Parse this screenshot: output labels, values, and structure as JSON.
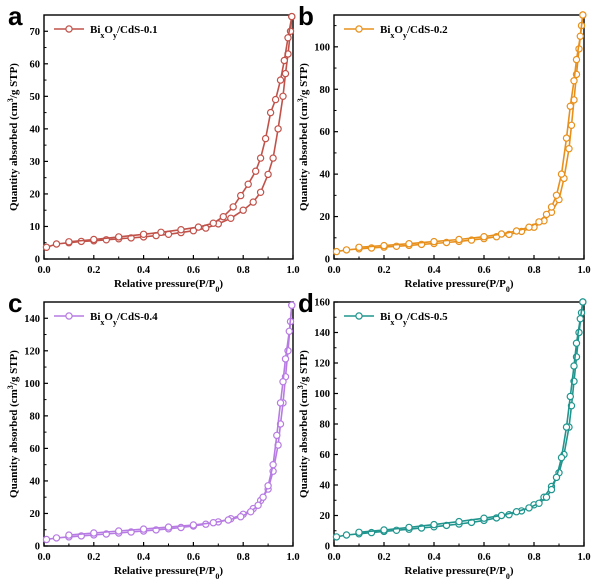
{
  "chart_data": [
    {
      "panel": "a",
      "type": "line",
      "series": [
        {
          "name": "Bi$_x$O$_y$/CdS-0.1",
          "color": "#c1524a",
          "adsorption": [
            [
              0.01,
              3.6
            ],
            [
              0.05,
              4.6
            ],
            [
              0.1,
              5.0
            ],
            [
              0.15,
              5.4
            ],
            [
              0.2,
              5.6
            ],
            [
              0.25,
              5.9
            ],
            [
              0.3,
              6.2
            ],
            [
              0.35,
              6.5
            ],
            [
              0.4,
              6.8
            ],
            [
              0.45,
              7.2
            ],
            [
              0.5,
              7.6
            ],
            [
              0.55,
              8.1
            ],
            [
              0.6,
              8.7
            ],
            [
              0.65,
              9.5
            ],
            [
              0.7,
              10.8
            ],
            [
              0.75,
              12.5
            ],
            [
              0.8,
              15.0
            ],
            [
              0.84,
              17.5
            ],
            [
              0.87,
              20.5
            ],
            [
              0.9,
              26.0
            ],
            [
              0.92,
              31.0
            ],
            [
              0.94,
              40.0
            ],
            [
              0.96,
              50.0
            ],
            [
              0.97,
              57.0
            ],
            [
              0.98,
              63.0
            ],
            [
              0.99,
              70.0
            ],
            [
              0.995,
              74.5
            ]
          ],
          "desorption": [
            [
              0.995,
              74.5
            ],
            [
              0.98,
              68.0
            ],
            [
              0.965,
              61.0
            ],
            [
              0.95,
              55.0
            ],
            [
              0.93,
              49.0
            ],
            [
              0.91,
              45.0
            ],
            [
              0.89,
              37.0
            ],
            [
              0.87,
              31.0
            ],
            [
              0.85,
              27.0
            ],
            [
              0.82,
              23.0
            ],
            [
              0.79,
              19.5
            ],
            [
              0.76,
              16.0
            ],
            [
              0.72,
              13.0
            ],
            [
              0.68,
              11.0
            ],
            [
              0.62,
              9.8
            ],
            [
              0.55,
              9.0
            ],
            [
              0.47,
              8.2
            ],
            [
              0.4,
              7.6
            ],
            [
              0.3,
              6.8
            ],
            [
              0.2,
              6.0
            ],
            [
              0.1,
              5.3
            ]
          ]
        }
      ],
      "xlabel": "Relative pressure(P/P0)",
      "ylabel": "Quantity absorbed (cm3/g STP)",
      "xlim": [
        0,
        1.0
      ],
      "ylim": [
        0,
        75
      ],
      "xticks": [
        "0.0",
        "0.2",
        "0.4",
        "0.6",
        "0.8",
        "1.0"
      ],
      "yticks": [
        "0",
        "10",
        "20",
        "30",
        "40",
        "50",
        "60",
        "70"
      ],
      "legend": "top-left",
      "grid": false
    },
    {
      "panel": "b",
      "type": "line",
      "series": [
        {
          "name": "Bi$_x$O$_y$/CdS-0.2",
          "color": "#e8901c",
          "adsorption": [
            [
              0.01,
              3.5
            ],
            [
              0.05,
              4.3
            ],
            [
              0.1,
              4.8
            ],
            [
              0.15,
              5.2
            ],
            [
              0.2,
              5.6
            ],
            [
              0.25,
              6.0
            ],
            [
              0.3,
              6.4
            ],
            [
              0.35,
              6.9
            ],
            [
              0.4,
              7.3
            ],
            [
              0.45,
              7.8
            ],
            [
              0.5,
              8.3
            ],
            [
              0.55,
              8.9
            ],
            [
              0.6,
              9.6
            ],
            [
              0.65,
              10.5
            ],
            [
              0.7,
              11.6
            ],
            [
              0.75,
              13.0
            ],
            [
              0.8,
              15.0
            ],
            [
              0.84,
              18.0
            ],
            [
              0.87,
              22.0
            ],
            [
              0.9,
              28.0
            ],
            [
              0.92,
              38.0
            ],
            [
              0.94,
              52.0
            ],
            [
              0.95,
              63.0
            ],
            [
              0.96,
              75.0
            ],
            [
              0.97,
              87.0
            ],
            [
              0.98,
              99.0
            ],
            [
              0.99,
              110.0
            ],
            [
              0.995,
              115.0
            ]
          ],
          "desorption": [
            [
              0.995,
              115.0
            ],
            [
              0.985,
              105.0
            ],
            [
              0.97,
              94.0
            ],
            [
              0.96,
              84.0
            ],
            [
              0.945,
              72.0
            ],
            [
              0.93,
              57.0
            ],
            [
              0.91,
              40.0
            ],
            [
              0.89,
              30.0
            ],
            [
              0.87,
              24.5
            ],
            [
              0.85,
              21.0
            ],
            [
              0.82,
              17.5
            ],
            [
              0.78,
              15.0
            ],
            [
              0.73,
              13.2
            ],
            [
              0.67,
              11.8
            ],
            [
              0.6,
              10.5
            ],
            [
              0.5,
              9.2
            ],
            [
              0.4,
              8.2
            ],
            [
              0.3,
              7.2
            ],
            [
              0.2,
              6.3
            ],
            [
              0.1,
              5.5
            ]
          ]
        }
      ],
      "xlabel": "Relative pressure(P/P0)",
      "ylabel": "Quantity absorbed (cm3/g STP)",
      "xlim": [
        0,
        1.0
      ],
      "ylim": [
        0,
        115
      ],
      "xticks": [
        "0.0",
        "0.2",
        "0.4",
        "0.6",
        "0.8",
        "1.0"
      ],
      "yticks": [
        "0",
        "20",
        "40",
        "60",
        "80",
        "100"
      ],
      "legend": "top-left",
      "grid": false
    },
    {
      "panel": "c",
      "type": "line",
      "series": [
        {
          "name": "Bi$_x$O$_y$/CdS-0.4",
          "color": "#b77be3",
          "adsorption": [
            [
              0.01,
              4.0
            ],
            [
              0.05,
              5.0
            ],
            [
              0.1,
              5.6
            ],
            [
              0.15,
              6.2
            ],
            [
              0.2,
              6.8
            ],
            [
              0.25,
              7.4
            ],
            [
              0.3,
              8.0
            ],
            [
              0.35,
              8.6
            ],
            [
              0.4,
              9.2
            ],
            [
              0.45,
              9.9
            ],
            [
              0.5,
              10.6
            ],
            [
              0.55,
              11.4
            ],
            [
              0.6,
              12.3
            ],
            [
              0.65,
              13.4
            ],
            [
              0.7,
              14.8
            ],
            [
              0.75,
              16.8
            ],
            [
              0.8,
              19.5
            ],
            [
              0.84,
              23.0
            ],
            [
              0.87,
              28.0
            ],
            [
              0.9,
              35.0
            ],
            [
              0.92,
              46.0
            ],
            [
              0.94,
              62.0
            ],
            [
              0.95,
              75.0
            ],
            [
              0.96,
              88.0
            ],
            [
              0.97,
              104.0
            ],
            [
              0.98,
              120.0
            ],
            [
              0.99,
              138.0
            ],
            [
              0.995,
              148.0
            ]
          ],
          "desorption": [
            [
              0.995,
              148.0
            ],
            [
              0.985,
              132.0
            ],
            [
              0.97,
              115.0
            ],
            [
              0.96,
              101.0
            ],
            [
              0.95,
              88.0
            ],
            [
              0.935,
              68.0
            ],
            [
              0.92,
              50.0
            ],
            [
              0.9,
              37.0
            ],
            [
              0.88,
              30.0
            ],
            [
              0.86,
              25.0
            ],
            [
              0.83,
              21.0
            ],
            [
              0.79,
              18.0
            ],
            [
              0.74,
              16.0
            ],
            [
              0.68,
              14.3
            ],
            [
              0.6,
              12.9
            ],
            [
              0.5,
              11.6
            ],
            [
              0.4,
              10.4
            ],
            [
              0.3,
              9.2
            ],
            [
              0.2,
              8.0
            ],
            [
              0.1,
              6.7
            ]
          ]
        }
      ],
      "xlabel": "Relative pressure(P/P0)",
      "ylabel": "Quantity absorbed (cm3/g STP)",
      "xlim": [
        0,
        1.0
      ],
      "ylim": [
        0,
        150
      ],
      "xticks": [
        "0.0",
        "0.2",
        "0.4",
        "0.6",
        "0.8",
        "1.0"
      ],
      "yticks": [
        "0",
        "20",
        "40",
        "60",
        "80",
        "100",
        "120",
        "140"
      ],
      "legend": "top-left",
      "grid": false
    },
    {
      "panel": "d",
      "type": "line",
      "series": [
        {
          "name": "Bi$_x$O$_y$/CdS-0.5",
          "color": "#20958e",
          "adsorption": [
            [
              0.01,
              6.0
            ],
            [
              0.05,
              7.2
            ],
            [
              0.1,
              8.0
            ],
            [
              0.15,
              8.8
            ],
            [
              0.2,
              9.6
            ],
            [
              0.25,
              10.3
            ],
            [
              0.3,
              11.0
            ],
            [
              0.35,
              11.8
            ],
            [
              0.4,
              12.6
            ],
            [
              0.45,
              13.5
            ],
            [
              0.5,
              14.4
            ],
            [
              0.55,
              15.5
            ],
            [
              0.6,
              16.8
            ],
            [
              0.65,
              18.4
            ],
            [
              0.7,
              20.5
            ],
            [
              0.75,
              23.0
            ],
            [
              0.8,
              27.0
            ],
            [
              0.84,
              32.0
            ],
            [
              0.87,
              39.0
            ],
            [
              0.9,
              48.0
            ],
            [
              0.92,
              60.0
            ],
            [
              0.94,
              78.0
            ],
            [
              0.95,
              92.0
            ],
            [
              0.96,
              108.0
            ],
            [
              0.97,
              124.0
            ],
            [
              0.98,
              140.0
            ],
            [
              0.99,
              153.0
            ],
            [
              0.995,
              160.0
            ]
          ],
          "desorption": [
            [
              0.995,
              160.0
            ],
            [
              0.985,
              149.0
            ],
            [
              0.97,
              133.0
            ],
            [
              0.96,
              118.0
            ],
            [
              0.945,
              98.0
            ],
            [
              0.93,
              78.0
            ],
            [
              0.91,
              58.0
            ],
            [
              0.89,
              45.0
            ],
            [
              0.87,
              37.0
            ],
            [
              0.85,
              32.0
            ],
            [
              0.82,
              28.0
            ],
            [
              0.78,
              25.0
            ],
            [
              0.73,
              22.5
            ],
            [
              0.67,
              20.0
            ],
            [
              0.6,
              18.2
            ],
            [
              0.5,
              16.0
            ],
            [
              0.4,
              14.0
            ],
            [
              0.3,
              12.2
            ],
            [
              0.2,
              10.5
            ],
            [
              0.1,
              9.0
            ]
          ]
        }
      ],
      "xlabel": "Relative pressure(P/P0)",
      "ylabel": "Quantity absorbed (cm3/g STP)",
      "xlim": [
        0,
        1.0
      ],
      "ylim": [
        0,
        160
      ],
      "xticks": [
        "0.0",
        "0.2",
        "0.4",
        "0.6",
        "0.8",
        "1.0"
      ],
      "yticks": [
        "0",
        "20",
        "40",
        "60",
        "80",
        "100",
        "120",
        "140",
        "160"
      ],
      "legend": "top-left",
      "grid": false
    }
  ]
}
